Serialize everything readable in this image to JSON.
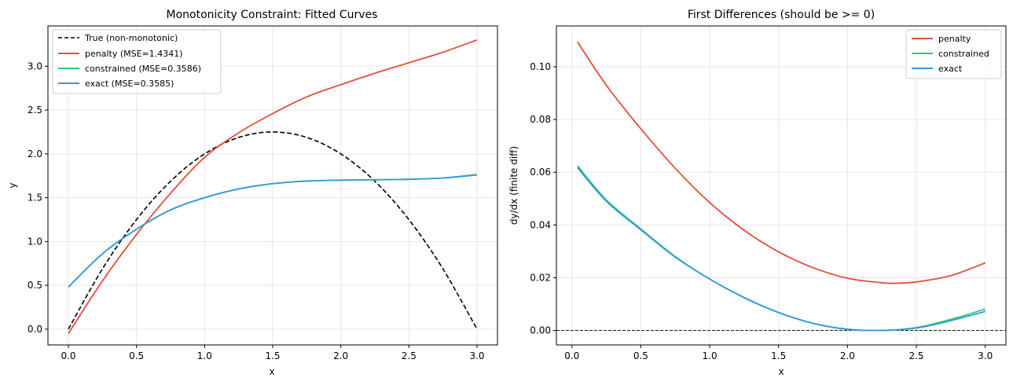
{
  "chart_data": [
    {
      "type": "line",
      "title": "Monotonicity Constraint: Fitted Curves",
      "xlabel": "x",
      "ylabel": "y",
      "xlim": [
        -0.15,
        3.15
      ],
      "ylim": [
        -0.18,
        3.46
      ],
      "xticks": [
        "0.0",
        "0.5",
        "1.0",
        "1.5",
        "2.0",
        "2.5",
        "3.0"
      ],
      "yticks": [
        "0.0",
        "0.5",
        "1.0",
        "1.5",
        "2.0",
        "2.5",
        "3.0"
      ],
      "grid": true,
      "legend_position": "top-left",
      "series": [
        {
          "name": "True (non-monotonic)",
          "color": "#000000",
          "dashed": true,
          "x": [
            0,
            0.25,
            0.5,
            0.75,
            1.0,
            1.25,
            1.5,
            1.75,
            2.0,
            2.25,
            2.5,
            2.75,
            3.0
          ],
          "y": [
            0,
            0.6875,
            1.25,
            1.6875,
            2.0,
            2.1875,
            2.25,
            2.1875,
            2.0,
            1.6875,
            1.25,
            0.6875,
            0
          ]
        },
        {
          "name": "penalty (MSE=1.4341)",
          "color": "#e74c3c",
          "x": [
            0,
            0.25,
            0.5,
            0.75,
            1.0,
            1.25,
            1.5,
            1.75,
            2.0,
            2.25,
            2.5,
            2.75,
            3.0
          ],
          "y": [
            -0.05,
            0.55,
            1.08,
            1.55,
            1.96,
            2.24,
            2.46,
            2.65,
            2.79,
            2.92,
            3.04,
            3.16,
            3.3
          ]
        },
        {
          "name": "constrained (MSE=0.3586)",
          "color": "#2ecc71",
          "x": [
            0,
            0.25,
            0.5,
            0.75,
            1.0,
            1.25,
            1.5,
            1.75,
            2.0,
            2.25,
            2.5,
            2.75,
            3.0
          ],
          "y": [
            0.48,
            0.86,
            1.14,
            1.36,
            1.5,
            1.6,
            1.66,
            1.69,
            1.7,
            1.705,
            1.71,
            1.725,
            1.765
          ]
        },
        {
          "name": "exact (MSE=0.3585)",
          "color": "#3498db",
          "x": [
            0,
            0.25,
            0.5,
            0.75,
            1.0,
            1.25,
            1.5,
            1.75,
            2.0,
            2.25,
            2.5,
            2.75,
            3.0
          ],
          "y": [
            0.48,
            0.86,
            1.14,
            1.36,
            1.5,
            1.6,
            1.66,
            1.69,
            1.7,
            1.705,
            1.71,
            1.725,
            1.76
          ]
        }
      ]
    },
    {
      "type": "line",
      "title": "First Differences (should be >= 0)",
      "xlabel": "x",
      "ylabel": "dy/dx (finite diff)",
      "xlim": [
        -0.1125,
        3.15
      ],
      "ylim": [
        -0.0055,
        0.1155
      ],
      "xticks": [
        "0.0",
        "0.5",
        "1.0",
        "1.5",
        "2.0",
        "2.5",
        "3.0"
      ],
      "yticks": [
        "0.00",
        "0.02",
        "0.04",
        "0.06",
        "0.08",
        "0.10"
      ],
      "grid": true,
      "legend_position": "top-right",
      "reference_line_y": 0,
      "series": [
        {
          "name": "penalty",
          "color": "#e74c3c",
          "x": [
            0.04,
            0.25,
            0.5,
            0.75,
            1.0,
            1.25,
            1.5,
            1.75,
            2.0,
            2.25,
            2.35,
            2.5,
            2.75,
            3.0
          ],
          "y": [
            0.1095,
            0.093,
            0.0765,
            0.0615,
            0.0485,
            0.038,
            0.0298,
            0.0238,
            0.0198,
            0.0181,
            0.0179,
            0.0184,
            0.0208,
            0.0256
          ]
        },
        {
          "name": "constrained",
          "color": "#2ecc71",
          "x": [
            0.04,
            0.25,
            0.5,
            0.75,
            1.0,
            1.25,
            1.5,
            1.75,
            2.0,
            2.25,
            2.5,
            2.75,
            3.0
          ],
          "y": [
            0.0625,
            0.0495,
            0.0385,
            0.028,
            0.0195,
            0.0125,
            0.0068,
            0.0027,
            0.0005,
            0.0,
            0.0011,
            0.0042,
            0.0081
          ]
        },
        {
          "name": "exact",
          "color": "#3498db",
          "x": [
            0.04,
            0.25,
            0.5,
            0.75,
            1.0,
            1.25,
            1.5,
            1.75,
            2.0,
            2.25,
            2.5,
            2.75,
            3.0
          ],
          "y": [
            0.0618,
            0.049,
            0.0382,
            0.0278,
            0.0195,
            0.0124,
            0.0068,
            0.0027,
            0.0004,
            0.0,
            0.0009,
            0.0037,
            0.0072
          ]
        }
      ]
    }
  ]
}
